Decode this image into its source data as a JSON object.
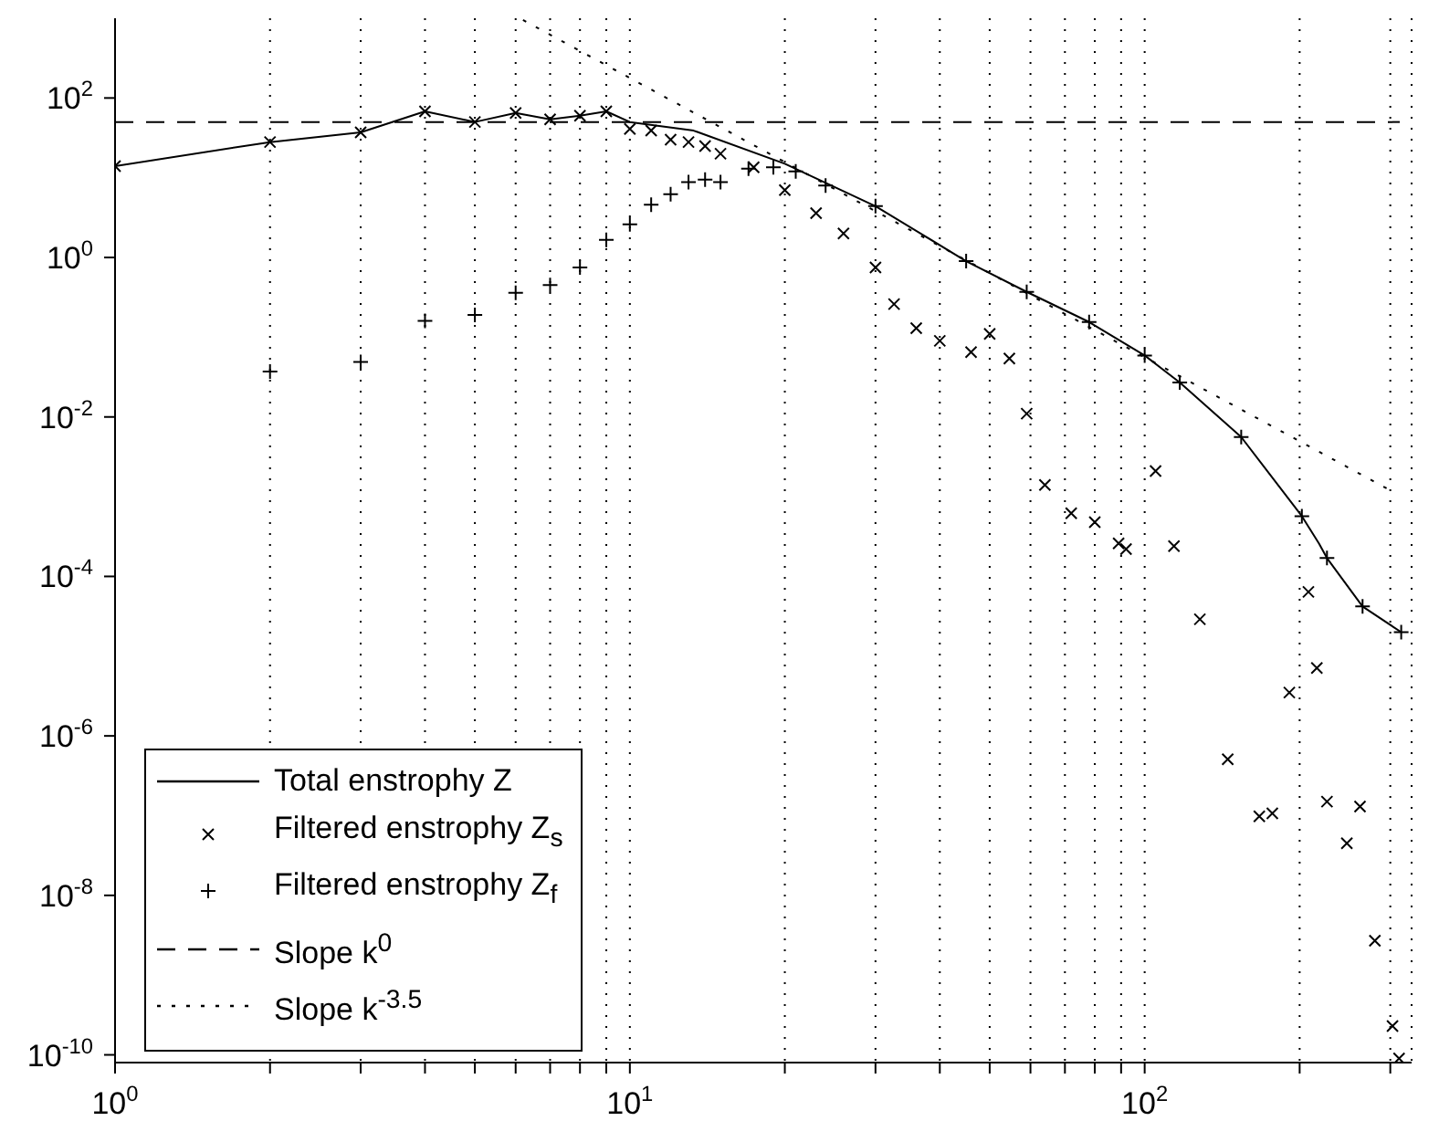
{
  "chart_data": {
    "type": "line",
    "xlim": [
      1,
      330
    ],
    "ylim": [
      8e-11,
      1000
    ],
    "log": "xy",
    "grid": "x",
    "legend": "bottom left",
    "xticks": [
      {
        "value": 1,
        "label": "10$^{0}$"
      },
      {
        "value": 2,
        "label": null
      },
      {
        "value": 3,
        "label": null
      },
      {
        "value": 4,
        "label": null
      },
      {
        "value": 5,
        "label": null
      },
      {
        "value": 6,
        "label": null
      },
      {
        "value": 7,
        "label": null
      },
      {
        "value": 8,
        "label": null
      },
      {
        "value": 9,
        "label": null
      },
      {
        "value": 10,
        "label": "10$^{1}$"
      },
      {
        "value": 20,
        "label": null
      },
      {
        "value": 30,
        "label": null
      },
      {
        "value": 40,
        "label": null
      },
      {
        "value": 50,
        "label": null
      },
      {
        "value": 60,
        "label": null
      },
      {
        "value": 70,
        "label": null
      },
      {
        "value": 80,
        "label": null
      },
      {
        "value": 90,
        "label": null
      },
      {
        "value": 100,
        "label": "10$^{2}$"
      },
      {
        "value": 200,
        "label": null
      },
      {
        "value": 300,
        "label": null
      }
    ],
    "yticks": [
      {
        "value": 1e-10,
        "label": "10$^{-10}$"
      },
      {
        "value": 1e-08,
        "label": "10$^{-8}$"
      },
      {
        "value": 1e-06,
        "label": "10$^{-6}$"
      },
      {
        "value": 0.0001,
        "label": "10$^{-4}$"
      },
      {
        "value": 0.01,
        "label": "10$^{-2}$"
      },
      {
        "value": 1,
        "label": "10$^{0}$"
      },
      {
        "value": 100,
        "label": "10$^{2}$"
      }
    ],
    "series": [
      {
        "name": "Total enstrophy Z",
        "line_style": "solid",
        "color": "#000000",
        "x": [
          1,
          2,
          3,
          4,
          5,
          6,
          7,
          8,
          9,
          10,
          13.3,
          20,
          30,
          45,
          59,
          78,
          100,
          117,
          154,
          202,
          218,
          226,
          265,
          315
        ],
        "values": [
          14,
          28,
          37,
          68,
          50,
          65,
          54,
          60,
          68,
          50,
          39,
          15,
          4.4,
          0.9,
          0.37,
          0.155,
          0.059,
          0.027,
          0.0056,
          0.00057,
          0.00026,
          0.00017,
          4.2e-05,
          2e-05
        ]
      },
      {
        "name": "Filtered enstrophy Z$_{s}$",
        "type": "scatter",
        "marker": "x",
        "color": "#000000",
        "x": [
          1,
          2,
          3,
          4,
          5,
          6,
          7,
          8,
          9,
          10,
          11,
          12,
          13,
          14,
          15,
          17.4,
          20,
          23,
          26,
          30,
          32.6,
          36,
          40,
          46,
          50,
          54.6,
          59,
          64,
          72,
          80,
          89,
          92,
          105,
          114,
          128,
          145,
          167,
          177,
          191,
          208,
          216,
          226,
          247,
          262,
          280,
          303,
          312
        ],
        "values": [
          14,
          28,
          37,
          68,
          50,
          65,
          54,
          60,
          68,
          41,
          39,
          30,
          28,
          25,
          20,
          13.5,
          7,
          3.6,
          2,
          0.75,
          0.26,
          0.13,
          0.09,
          0.065,
          0.11,
          0.054,
          0.011,
          0.0014,
          0.00062,
          0.00048,
          0.00026,
          0.00022,
          0.0021,
          0.00024,
          2.9e-05,
          5.1e-07,
          9.8e-08,
          1.07e-07,
          3.5e-06,
          6.4e-05,
          7.1e-06,
          1.5e-07,
          4.5e-08,
          1.3e-07,
          2.7e-09,
          2.3e-10,
          9e-11
        ]
      },
      {
        "name": "Filtered enstrophy Z$_{f}$",
        "type": "scatter",
        "marker": "cross",
        "color": "#000000",
        "x": [
          2,
          3,
          4,
          5,
          6,
          7,
          8,
          9,
          10,
          11,
          12,
          13,
          14,
          15,
          17,
          19,
          21,
          24,
          30,
          45,
          59,
          78,
          100,
          117,
          154,
          202,
          226,
          265,
          315
        ],
        "values": [
          0.037,
          0.049,
          0.16,
          0.19,
          0.36,
          0.45,
          0.75,
          1.66,
          2.6,
          4.6,
          6.2,
          8.8,
          9.5,
          8.8,
          13,
          13.5,
          12,
          8,
          4.4,
          0.9,
          0.37,
          0.155,
          0.059,
          0.027,
          0.0056,
          0.00057,
          0.00017,
          4.2e-05,
          2e-05
        ]
      },
      {
        "name": "Slope k$^{0}$",
        "line_style": "dashed",
        "color": "#000000",
        "x": [
          1,
          313
        ],
        "values": [
          50,
          50
        ]
      },
      {
        "name": "Slope k$^{-3.5}$",
        "line_style": "dotted",
        "color": "#000000",
        "x": [
          6.2,
          300
        ],
        "values": [
          950,
          0.0012
        ]
      }
    ]
  }
}
